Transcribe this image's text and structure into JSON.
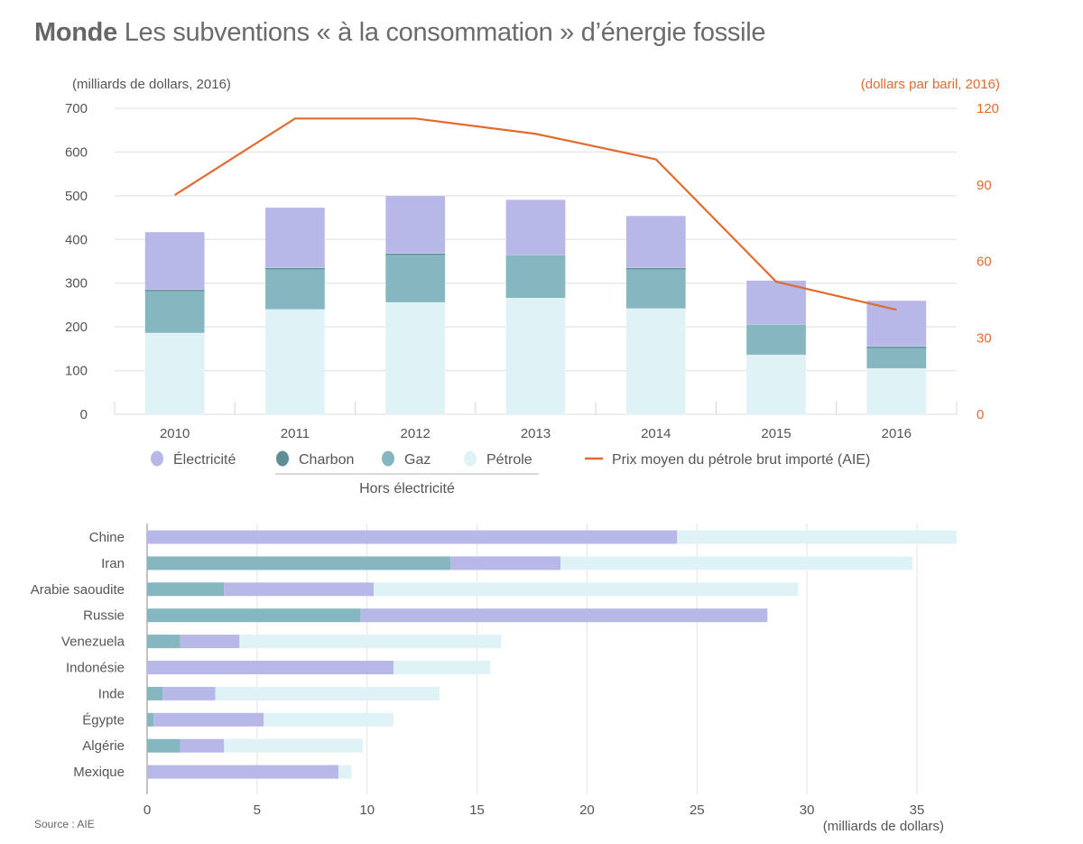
{
  "title": {
    "bold": "Monde",
    "rest": "Les subventions « à la consommation » d’énergie fossile"
  },
  "colors": {
    "electricite": "#b8b8e8",
    "charbon": "#5f8e96",
    "gaz": "#86b7c1",
    "petrole": "#dff3f6",
    "prix": "#e06c2f",
    "grid": "#e8e8e8"
  },
  "chart_data": [
    {
      "type": "bar",
      "stacked": true,
      "title": "Les subventions « à la consommation » d’énergie fossile",
      "ylabel": "(milliards de dollars, 2016)",
      "y2label": "(dollars par baril, 2016)",
      "ylim": [
        0,
        700
      ],
      "y2lim": [
        0,
        120
      ],
      "yticks": [
        0,
        100,
        200,
        300,
        400,
        500,
        600,
        700
      ],
      "y2ticks": [
        0,
        30,
        60,
        90,
        120
      ],
      "categories": [
        "2010",
        "2011",
        "2012",
        "2013",
        "2014",
        "2015",
        "2016"
      ],
      "series": [
        {
          "key": "petrole",
          "name": "Pétrole",
          "values": [
            186,
            240,
            256,
            266,
            242,
            136,
            105
          ]
        },
        {
          "key": "gaz",
          "name": "Gaz",
          "values": [
            97,
            93,
            110,
            99,
            91,
            70,
            48
          ]
        },
        {
          "key": "charbon",
          "name": "Charbon",
          "values": [
            2,
            2,
            2,
            0,
            2,
            0,
            2
          ]
        },
        {
          "key": "electricite",
          "name": "Électricité",
          "values": [
            132,
            138,
            132,
            126,
            119,
            100,
            105
          ]
        }
      ],
      "line_series": {
        "key": "prix",
        "name": "Prix moyen du pétrole brut importé (AIE)",
        "axis": "right",
        "values": [
          86,
          116,
          116,
          110,
          100,
          52,
          41
        ]
      },
      "legend": {
        "items": [
          "Électricité",
          "Charbon",
          "Gaz",
          "Pétrole",
          "Prix moyen du pétrole brut importé (AIE)"
        ],
        "group_label": "Hors électricité",
        "position": "bottom"
      },
      "grid": true
    },
    {
      "type": "bar",
      "orientation": "horizontal",
      "stacked": true,
      "xlabel": "(milliards de dollars)",
      "xlim": [
        0,
        37
      ],
      "xticks": [
        0,
        5,
        10,
        15,
        20,
        25,
        30,
        35
      ],
      "categories": [
        "Chine",
        "Iran",
        "Arabie saoudite",
        "Russie",
        "Venezuela",
        "Indonésie",
        "Inde",
        "Égypte",
        "Algérie",
        "Mexique"
      ],
      "series": [
        {
          "key": "gaz",
          "name": "Gaz",
          "values": [
            0,
            13.8,
            3.5,
            9.7,
            1.5,
            0,
            0.7,
            0.3,
            1.5,
            0
          ]
        },
        {
          "key": "electricite",
          "name": "Électricité",
          "values": [
            24.1,
            5.0,
            6.8,
            18.5,
            2.7,
            11.2,
            2.4,
            5.0,
            2.0,
            8.7
          ]
        },
        {
          "key": "petrole",
          "name": "Pétrole",
          "values": [
            12.7,
            16.0,
            19.3,
            0,
            11.9,
            4.4,
            10.2,
            5.9,
            6.3,
            0.6
          ]
        }
      ],
      "grid": true
    }
  ],
  "source": "Source : AIE"
}
